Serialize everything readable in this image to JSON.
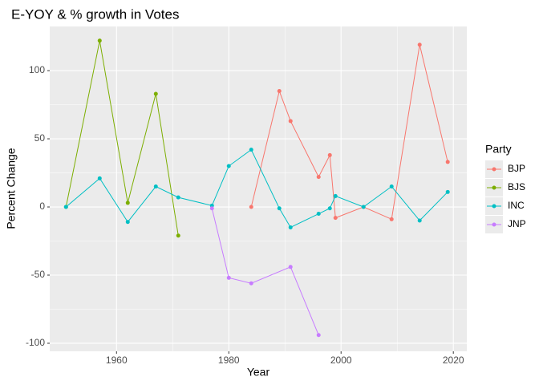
{
  "chart_data": {
    "type": "line",
    "title": "E-YOY & % growth in Votes",
    "x_label": "Year",
    "y_label": "Percent Change",
    "legend_title": "Party",
    "xlim": [
      1948.1,
      2022.4
    ],
    "xticks": [
      1960,
      1980,
      2000,
      2020
    ],
    "ylim": [
      -105.9,
      132.4
    ],
    "yticks": [
      -100,
      -50,
      0,
      50,
      100
    ],
    "grid": true,
    "legend_position": "right",
    "series": [
      {
        "name": "BJP",
        "color": "#F8766D",
        "x": [
          1984,
          1989,
          1991,
          1996,
          1998,
          1999,
          2004,
          2009,
          2014,
          2019
        ],
        "values": [
          0,
          85,
          63,
          22,
          38,
          -8,
          0,
          -9,
          119,
          33
        ]
      },
      {
        "name": "BJS",
        "color": "#7CAE00",
        "x": [
          1951,
          1957,
          1962,
          1967,
          1971
        ],
        "values": [
          0,
          122,
          3,
          83,
          -21
        ]
      },
      {
        "name": "INC",
        "color": "#00BFC4",
        "x": [
          1951,
          1957,
          1962,
          1967,
          1971,
          1977,
          1980,
          1984,
          1989,
          1991,
          1996,
          1998,
          1999,
          2004,
          2009,
          2014,
          2019
        ],
        "values": [
          0,
          21,
          -11,
          15,
          7,
          1,
          30,
          42,
          -1,
          -15,
          -5,
          -1,
          8,
          0,
          15,
          -10,
          11
        ]
      },
      {
        "name": "JNP",
        "color": "#C77CFF",
        "x": [
          1977,
          1980,
          1984,
          1991,
          1996
        ],
        "values": [
          -1,
          -52,
          -56,
          -44,
          -94
        ]
      }
    ]
  }
}
